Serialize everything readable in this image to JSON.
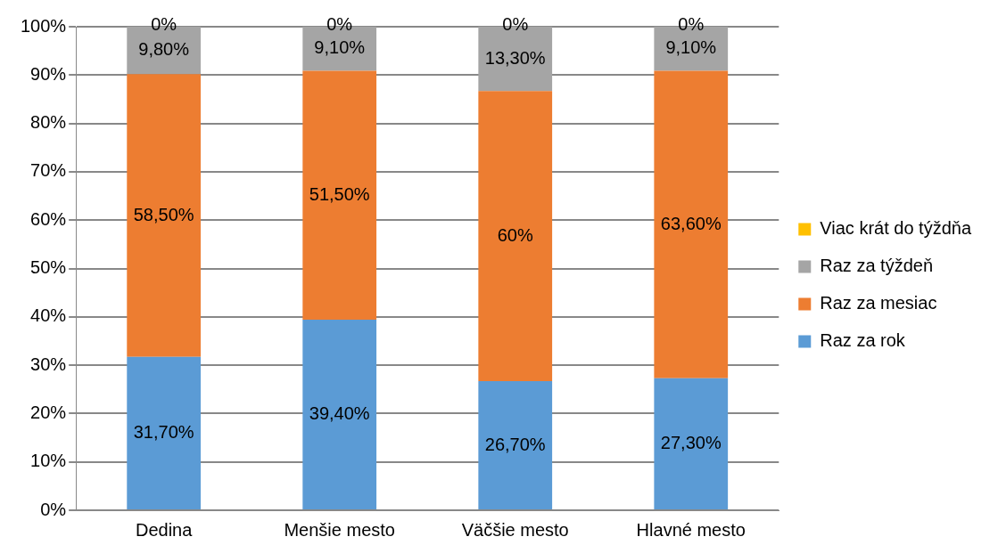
{
  "chart_data": {
    "type": "bar",
    "stacked": true,
    "categories": [
      "Dedina",
      "Menšie mesto",
      "Väčšie mesto",
      "Hlavné mesto"
    ],
    "series": [
      {
        "name": "Raz za rok",
        "color": "#5b9bd5",
        "values": [
          31.7,
          39.4,
          26.7,
          27.3
        ],
        "value_labels": [
          "31,70%",
          "39,40%",
          "26,70%",
          "27,30%"
        ]
      },
      {
        "name": "Raz za mesiac",
        "color": "#ed7d31",
        "values": [
          58.5,
          51.5,
          60,
          63.6
        ],
        "value_labels": [
          "58,50%",
          "51,50%",
          "60%",
          "63,60%"
        ]
      },
      {
        "name": "Raz za týždeň",
        "color": "#a5a5a5",
        "values": [
          9.8,
          9.1,
          13.3,
          9.1
        ],
        "value_labels": [
          "9,80%",
          "9,10%",
          "13,30%",
          "9,10%"
        ]
      },
      {
        "name": "Viac krát do týždňa",
        "color": "#ffc000",
        "values": [
          0,
          0,
          0,
          0
        ],
        "value_labels": [
          "0%",
          "0%",
          "0%",
          "0%"
        ]
      }
    ],
    "ylim": [
      0,
      100
    ],
    "yticks": [
      {
        "value": 0,
        "label": "0%"
      },
      {
        "value": 10,
        "label": "10%"
      },
      {
        "value": 20,
        "label": "20%"
      },
      {
        "value": 30,
        "label": "30%"
      },
      {
        "value": 40,
        "label": "40%"
      },
      {
        "value": 50,
        "label": "50%"
      },
      {
        "value": 60,
        "label": "60%"
      },
      {
        "value": 70,
        "label": "70%"
      },
      {
        "value": 80,
        "label": "80%"
      },
      {
        "value": 90,
        "label": "90%"
      },
      {
        "value": 100,
        "label": "100%"
      }
    ],
    "grid": "y",
    "legend": "right"
  }
}
